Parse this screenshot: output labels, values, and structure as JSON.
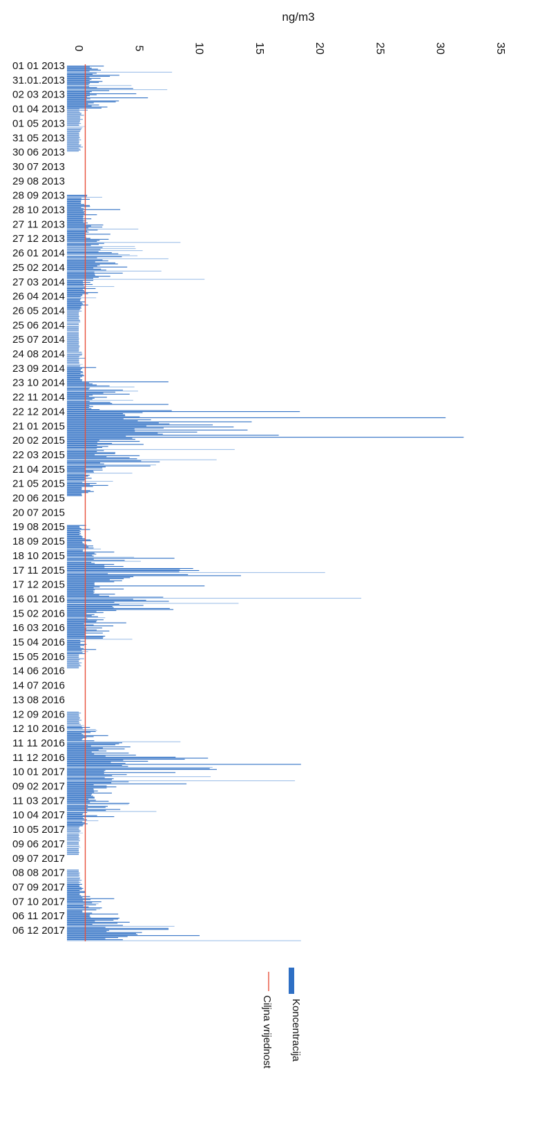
{
  "chart_data": {
    "type": "bar",
    "orientation": "horizontal",
    "unit_label": "ng/m3",
    "xlim": [
      0,
      35
    ],
    "xticks": [
      0,
      5,
      10,
      15,
      20,
      25,
      30,
      35
    ],
    "target_value": 0.6,
    "legend": [
      {
        "name": "Koncentracija",
        "color": "#2e6fc4",
        "kind": "bar"
      },
      {
        "name": "Ciljna vrijednost",
        "color": "#e8503a",
        "kind": "line"
      }
    ],
    "date_labels": [
      "01 01 2013",
      "31.01.2013",
      "02 03 2013",
      "01 04 2013",
      "01 05 2013",
      "31 05 2013",
      "30 06 2013",
      "30 07 2013",
      "29 08 2013",
      "28 09 2013",
      "28 10 2013",
      "27 11 2013",
      "27 12 2013",
      "26 01 2014",
      "25 02 2014",
      "27 03 2014",
      "26 04 2014",
      "26 05 2014",
      "25 06 2014",
      "25 07 2014",
      "24 08 2014",
      "23 09 2014",
      "23 10 2014",
      "22 11 2014",
      "22 12 2014",
      "21 01 2015",
      "20 02 2015",
      "22 03 2015",
      "21 04 2015",
      "21 05 2015",
      "20 06 2015",
      "20 07 2015",
      "19 08 2015",
      "18 09 2015",
      "18 10 2015",
      "17 11 2015",
      "17 12 2015",
      "16 01 2016",
      "15 02 2016",
      "16 03 2016",
      "15 04 2016",
      "15 05 2016",
      "14 06 2016",
      "14 07 2016",
      "13 08 2016",
      "12 09 2016",
      "12 10 2016",
      "11 11 2016",
      "11 12 2016",
      "10 01 2017",
      "09 02 2017",
      "11 03 2017",
      "10 04 2017",
      "10 05 2017",
      "09 06 2017",
      "09 07 2017",
      "08 08 2017",
      "07 09 2017",
      "07 10 2017",
      "06 11 2017",
      "06 12 2017"
    ],
    "series": [
      {
        "name": "Koncentracija",
        "period_max_values": [
          7.8,
          7.4,
          5.8,
          0.8,
          0.6,
          0.4,
          0.0,
          0.0,
          0.0,
          2.0,
          3.5,
          5.0,
          8.5,
          7.5,
          10.5,
          3.0,
          1.5,
          0.3,
          0.1,
          0.3,
          0.6,
          1.5,
          7.5,
          7.5,
          30.5,
          32.0,
          13.0,
          11.5,
          4.5,
          2.5,
          0.0,
          0.0,
          1.0,
          3.0,
          8.0,
          20.5,
          10.5,
          23.5,
          4.0,
          4.5,
          1.5,
          0.5,
          0.0,
          0.0,
          0.0,
          0.5,
          2.5,
          8.5,
          18.5,
          18.0,
          9.0,
          6.5,
          3.0,
          0.4,
          0.2,
          0.0,
          0.3,
          1.0,
          3.0,
          8.0,
          18.5
        ]
      },
      {
        "name": "Ciljna vrijednost",
        "value": 0.6
      }
    ]
  }
}
